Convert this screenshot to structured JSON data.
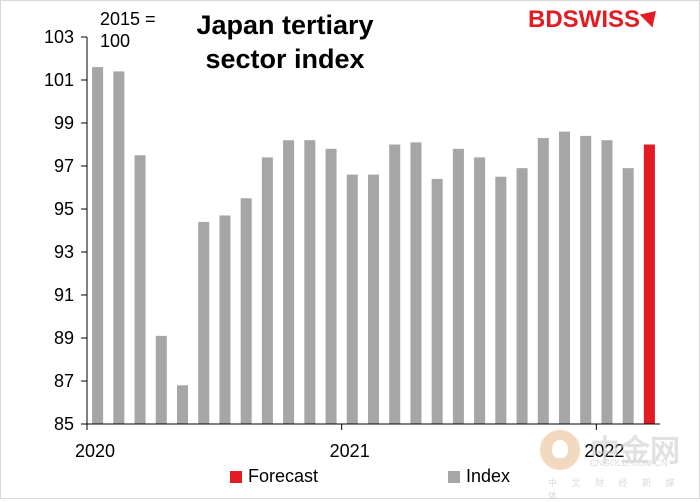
{
  "chart_data": {
    "type": "bar",
    "title": "Japan tertiary sector index",
    "unit_label": "2015 = 100",
    "ylim": [
      85,
      103
    ],
    "yticks": [
      85,
      87,
      89,
      91,
      93,
      95,
      97,
      99,
      101,
      103
    ],
    "x_tick_labels": [
      "2020",
      "2021",
      "2022"
    ],
    "x_tick_positions": [
      0,
      12,
      24
    ],
    "series": [
      {
        "name": "Index",
        "color": "#a6a6a6",
        "values": [
          101.6,
          101.4,
          97.5,
          89.1,
          86.8,
          94.4,
          94.7,
          95.5,
          97.4,
          98.2,
          98.2,
          97.8,
          96.6,
          96.6,
          98.0,
          98.1,
          96.4,
          97.8,
          97.4,
          96.5,
          96.9,
          98.3,
          98.6,
          98.4,
          98.2,
          96.9
        ]
      },
      {
        "name": "Forecast",
        "color": "#e31b23",
        "values": [
          98.0
        ]
      }
    ],
    "legend": {
      "position": "bottom",
      "entries": [
        "Forecast",
        "Index"
      ]
    },
    "grid": false
  },
  "logo": {
    "part1": "BD",
    "part2": "SWISS"
  },
  "watermark": {
    "text": "中金网",
    "url": "CNGOLD.COM.CN",
    "sub": "中 文 财 经 新 媒 体"
  }
}
